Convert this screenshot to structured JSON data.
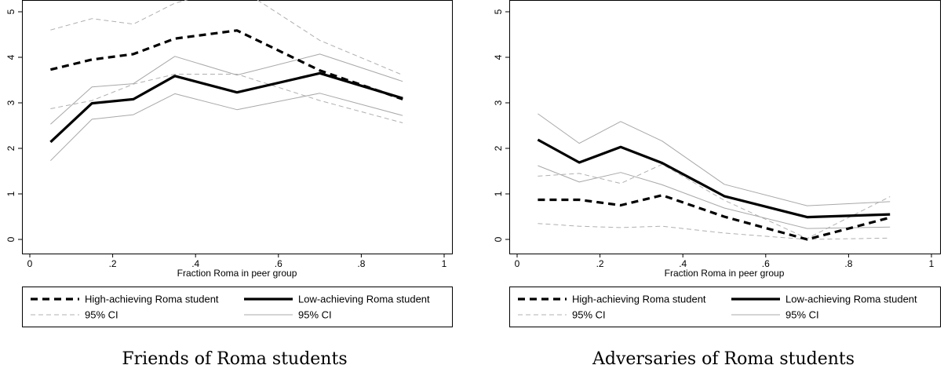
{
  "chart_data": [
    {
      "type": "line",
      "title": "Friends of Roma students",
      "xlabel": "Fraction Roma in peer group",
      "ylabel": "",
      "xlim": [
        0,
        1
      ],
      "ylim": [
        0,
        5
      ],
      "xticks": [
        0,
        0.2,
        0.4,
        0.6,
        0.8,
        1
      ],
      "xtick_labels": [
        "0",
        ".2",
        ".4",
        ".6",
        ".8",
        "1"
      ],
      "yticks": [
        0,
        1,
        2,
        3,
        4,
        5
      ],
      "ytick_labels": [
        "0",
        "1",
        "2",
        "3",
        "4",
        "5"
      ],
      "grid": false,
      "legend_position": "bottom",
      "x": [
        0.05,
        0.15,
        0.25,
        0.35,
        0.5,
        0.7,
        0.9
      ],
      "series": [
        {
          "name": "High-achieving Roma student",
          "style": "thick-dashed",
          "color": "#000000",
          "values": [
            3.73,
            3.95,
            4.07,
            4.41,
            4.59,
            3.71,
            3.08
          ]
        },
        {
          "name": "Low-achieving Roma student",
          "style": "thick-solid",
          "color": "#000000",
          "values": [
            2.14,
            2.99,
            3.08,
            3.59,
            3.23,
            3.65,
            3.1
          ]
        },
        {
          "name": "95% CI",
          "style": "thin-dashed",
          "color": "#b0b0b0",
          "values": [
            4.6,
            4.85,
            4.73,
            5.19,
            5.55,
            4.37,
            3.61
          ]
        },
        {
          "name": "",
          "style": "thin-dashed",
          "color": "#b0b0b0",
          "values": [
            2.87,
            3.05,
            3.41,
            3.63,
            3.63,
            3.05,
            2.56
          ]
        },
        {
          "name": "95% CI",
          "style": "thin-solid",
          "color": "#a8a8a8",
          "values": [
            2.53,
            3.35,
            3.42,
            4.02,
            3.61,
            4.07,
            3.47
          ]
        },
        {
          "name": "",
          "style": "thin-solid",
          "color": "#a8a8a8",
          "values": [
            1.73,
            2.64,
            2.74,
            3.2,
            2.85,
            3.21,
            2.72
          ]
        }
      ],
      "legend": [
        {
          "label": "High-achieving Roma student",
          "style": "thick-dashed"
        },
        {
          "label": "Low-achieving Roma student",
          "style": "thick-solid"
        },
        {
          "label": "95% CI",
          "style": "thin-dashed"
        },
        {
          "label": "95% CI",
          "style": "thin-solid"
        }
      ]
    },
    {
      "type": "line",
      "title": "Adversaries of Roma students",
      "xlabel": "Fraction Roma in peer group",
      "ylabel": "",
      "xlim": [
        0,
        1
      ],
      "ylim": [
        0,
        5
      ],
      "xticks": [
        0,
        0.2,
        0.4,
        0.6,
        0.8,
        1
      ],
      "xtick_labels": [
        "0",
        ".2",
        ".4",
        ".6",
        ".8",
        "1"
      ],
      "yticks": [
        0,
        1,
        2,
        3,
        4,
        5
      ],
      "ytick_labels": [
        "0",
        "1",
        "2",
        "3",
        "4",
        "5"
      ],
      "grid": false,
      "legend_position": "bottom",
      "x": [
        0.05,
        0.15,
        0.25,
        0.35,
        0.5,
        0.7,
        0.9
      ],
      "series": [
        {
          "name": "High-achieving Roma student",
          "style": "thick-dashed",
          "color": "#000000",
          "values": [
            0.87,
            0.87,
            0.75,
            0.97,
            0.5,
            0.0,
            0.48
          ]
        },
        {
          "name": "Low-achieving Roma student",
          "style": "thick-solid",
          "color": "#000000",
          "values": [
            2.19,
            1.69,
            2.03,
            1.68,
            0.95,
            0.49,
            0.55
          ]
        },
        {
          "name": "95% CI",
          "style": "thin-dashed",
          "color": "#b0b0b0",
          "values": [
            1.39,
            1.45,
            1.23,
            1.65,
            0.86,
            0.02,
            0.94
          ]
        },
        {
          "name": "",
          "style": "thin-dashed",
          "color": "#b0b0b0",
          "values": [
            0.35,
            0.29,
            0.26,
            0.29,
            0.14,
            0.0,
            0.03
          ]
        },
        {
          "name": "95% CI",
          "style": "thin-solid",
          "color": "#a8a8a8",
          "values": [
            2.76,
            2.11,
            2.59,
            2.16,
            1.21,
            0.74,
            0.83
          ]
        },
        {
          "name": "",
          "style": "thin-solid",
          "color": "#a8a8a8",
          "values": [
            1.62,
            1.26,
            1.47,
            1.2,
            0.69,
            0.24,
            0.27
          ]
        }
      ],
      "legend": [
        {
          "label": "High-achieving Roma student",
          "style": "thick-dashed"
        },
        {
          "label": "Low-achieving Roma student",
          "style": "thick-solid"
        },
        {
          "label": "95% CI",
          "style": "thin-dashed"
        },
        {
          "label": "95% CI",
          "style": "thin-solid"
        }
      ]
    }
  ]
}
